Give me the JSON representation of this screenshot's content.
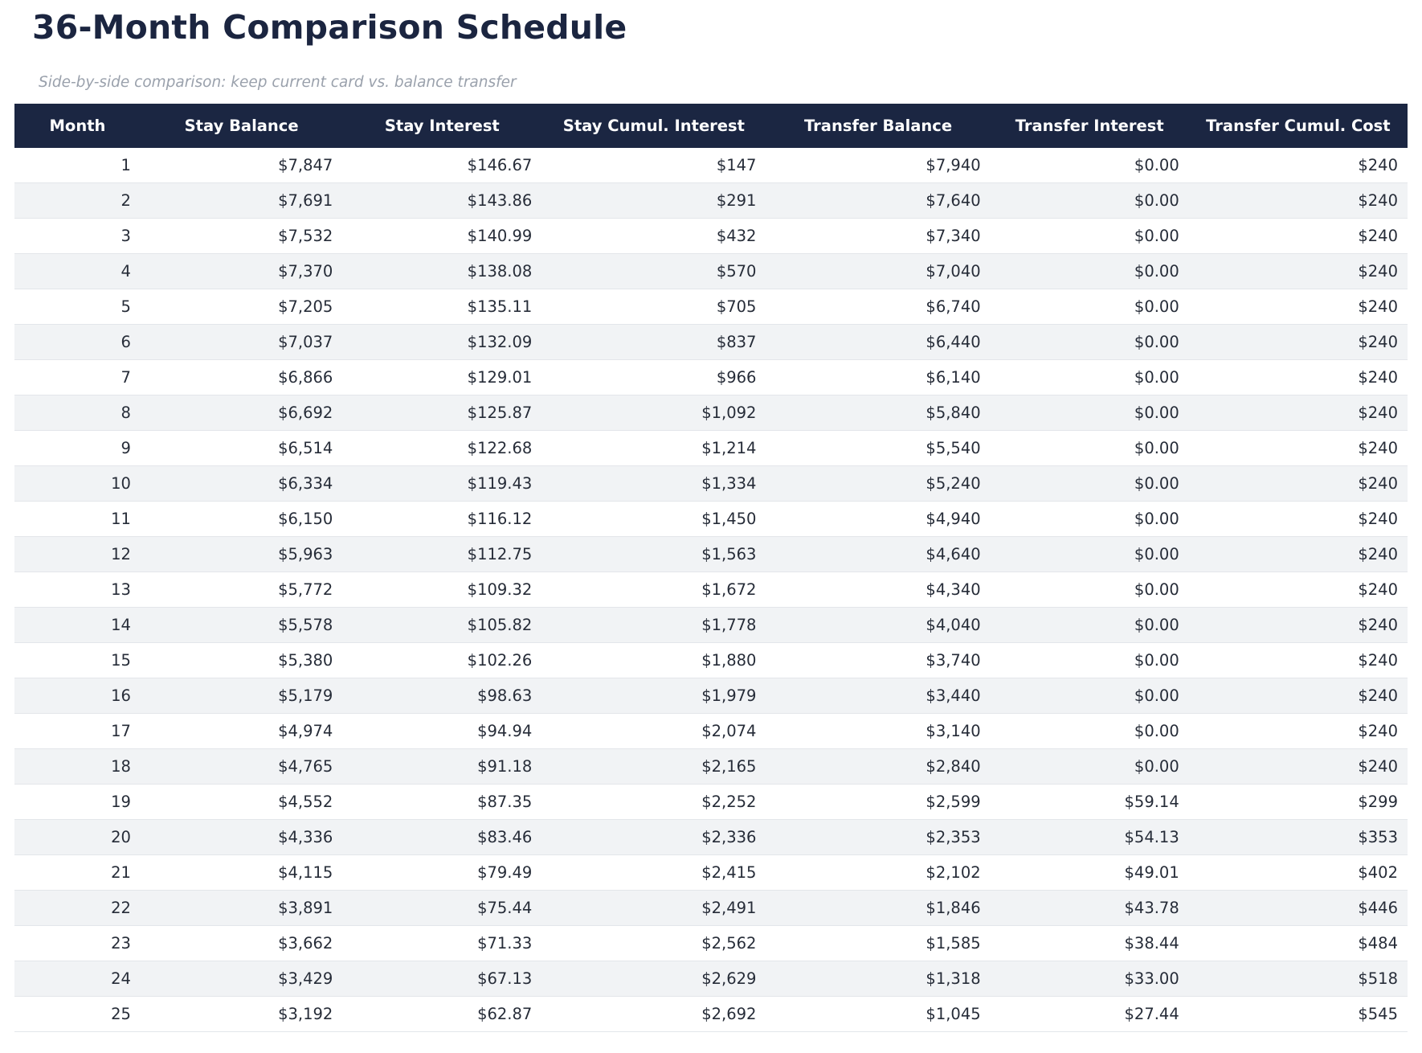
{
  "chart_data": {
    "type": "table",
    "title": "36-Month Comparison Schedule",
    "subtitle": "Side-by-side comparison: keep current card vs. balance transfer",
    "columns": [
      "Month",
      "Stay Balance",
      "Stay Interest",
      "Stay Cumul. Interest",
      "Transfer Balance",
      "Transfer Interest",
      "Transfer Cumul. Cost"
    ],
    "rows": [
      [
        "1",
        "$7,847",
        "$146.67",
        "$147",
        "$7,940",
        "$0.00",
        "$240"
      ],
      [
        "2",
        "$7,691",
        "$143.86",
        "$291",
        "$7,640",
        "$0.00",
        "$240"
      ],
      [
        "3",
        "$7,532",
        "$140.99",
        "$432",
        "$7,340",
        "$0.00",
        "$240"
      ],
      [
        "4",
        "$7,370",
        "$138.08",
        "$570",
        "$7,040",
        "$0.00",
        "$240"
      ],
      [
        "5",
        "$7,205",
        "$135.11",
        "$705",
        "$6,740",
        "$0.00",
        "$240"
      ],
      [
        "6",
        "$7,037",
        "$132.09",
        "$837",
        "$6,440",
        "$0.00",
        "$240"
      ],
      [
        "7",
        "$6,866",
        "$129.01",
        "$966",
        "$6,140",
        "$0.00",
        "$240"
      ],
      [
        "8",
        "$6,692",
        "$125.87",
        "$1,092",
        "$5,840",
        "$0.00",
        "$240"
      ],
      [
        "9",
        "$6,514",
        "$122.68",
        "$1,214",
        "$5,540",
        "$0.00",
        "$240"
      ],
      [
        "10",
        "$6,334",
        "$119.43",
        "$1,334",
        "$5,240",
        "$0.00",
        "$240"
      ],
      [
        "11",
        "$6,150",
        "$116.12",
        "$1,450",
        "$4,940",
        "$0.00",
        "$240"
      ],
      [
        "12",
        "$5,963",
        "$112.75",
        "$1,563",
        "$4,640",
        "$0.00",
        "$240"
      ],
      [
        "13",
        "$5,772",
        "$109.32",
        "$1,672",
        "$4,340",
        "$0.00",
        "$240"
      ],
      [
        "14",
        "$5,578",
        "$105.82",
        "$1,778",
        "$4,040",
        "$0.00",
        "$240"
      ],
      [
        "15",
        "$5,380",
        "$102.26",
        "$1,880",
        "$3,740",
        "$0.00",
        "$240"
      ],
      [
        "16",
        "$5,179",
        "$98.63",
        "$1,979",
        "$3,440",
        "$0.00",
        "$240"
      ],
      [
        "17",
        "$4,974",
        "$94.94",
        "$2,074",
        "$3,140",
        "$0.00",
        "$240"
      ],
      [
        "18",
        "$4,765",
        "$91.18",
        "$2,165",
        "$2,840",
        "$0.00",
        "$240"
      ],
      [
        "19",
        "$4,552",
        "$87.35",
        "$2,252",
        "$2,599",
        "$59.14",
        "$299"
      ],
      [
        "20",
        "$4,336",
        "$83.46",
        "$2,336",
        "$2,353",
        "$54.13",
        "$353"
      ],
      [
        "21",
        "$4,115",
        "$79.49",
        "$2,415",
        "$2,102",
        "$49.01",
        "$402"
      ],
      [
        "22",
        "$3,891",
        "$75.44",
        "$2,491",
        "$1,846",
        "$43.78",
        "$446"
      ],
      [
        "23",
        "$3,662",
        "$71.33",
        "$2,562",
        "$1,585",
        "$38.44",
        "$484"
      ],
      [
        "24",
        "$3,429",
        "$67.13",
        "$2,629",
        "$1,318",
        "$33.00",
        "$518"
      ],
      [
        "25",
        "$3,192",
        "$62.87",
        "$2,692",
        "$1,045",
        "$27.44",
        "$545"
      ]
    ],
    "layout": {
      "legend": "none",
      "grid": "horizontal-row-borders",
      "row_striping": "alternate",
      "header_alignment": "center",
      "value_alignment": "right"
    }
  },
  "colors": {
    "header_bg": "#1b2642",
    "header_text": "#ffffff",
    "title_text": "#1b2540",
    "subtitle_text": "#9aa1ac",
    "cell_text": "#262c38",
    "stripe_bg": "#f1f3f5",
    "row_border": "#e3e6ea",
    "page_bg": "#ffffff"
  }
}
